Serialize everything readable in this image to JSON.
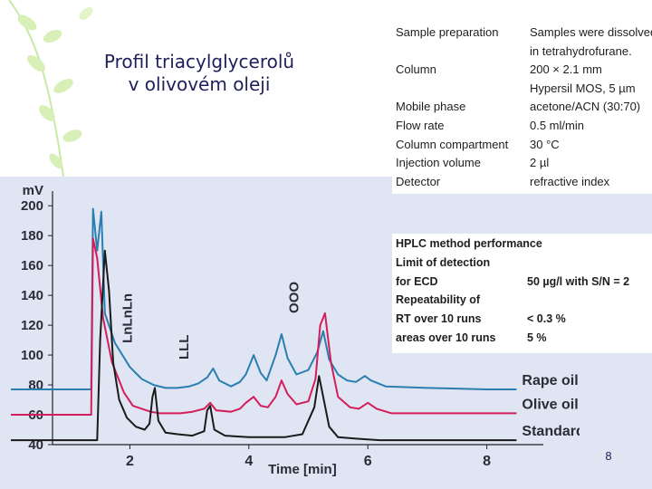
{
  "slide": {
    "title_line1": "Profil triacylglycerolů",
    "title_line2": "v olivovém oleji",
    "page_number": "8",
    "decoration": "pale green leaf branch"
  },
  "prep_table": [
    {
      "label": "Sample preparation",
      "value": "Samples were dissolved"
    },
    {
      "label": "",
      "value": "in tetrahydrofurane."
    },
    {
      "label": "Column",
      "value": "200 × 2.1 mm"
    },
    {
      "label": "",
      "value": "Hypersil MOS, 5 µm"
    },
    {
      "label": "Mobile phase",
      "value": "acetone/ACN (30:70)"
    },
    {
      "label": "Flow rate",
      "value": "0.5 ml/min"
    },
    {
      "label": "Column compartment",
      "value": "30 °C"
    },
    {
      "label": "Injection volume",
      "value": "2 µl"
    },
    {
      "label": "Detector",
      "value": "refractive index"
    }
  ],
  "performance_table": [
    {
      "label": "HPLC method performance",
      "value": ""
    },
    {
      "label": "Limit of detection",
      "value": ""
    },
    {
      "label": "for ECD",
      "value": "50 µg/l with S/N = 2"
    },
    {
      "label": "Repeatability of",
      "value": ""
    },
    {
      "label": "RT over 10 runs",
      "value": "< 0.3 %"
    },
    {
      "label": "areas over 10 runs",
      "value": "5 %"
    }
  ],
  "chart_data": {
    "type": "line",
    "ylabel": "mV",
    "xlabel": "Time [min]",
    "xlim": [
      0,
      10
    ],
    "ylim": [
      40,
      205
    ],
    "x_ticks": [
      2,
      4,
      6,
      8
    ],
    "x_tick_labels": [
      "2",
      "4",
      "6",
      "8"
    ],
    "y_ticks": [
      40,
      60,
      80,
      100,
      120,
      140,
      160,
      180,
      200
    ],
    "y_tick_labels": [
      "40",
      "60",
      "80",
      "100",
      "120",
      "140",
      "160",
      "180",
      "200"
    ],
    "grid": false,
    "legend": "right, labels beside trace ends",
    "background": "#dfe5f2",
    "peak_labels": [
      {
        "text": "LnLnLn",
        "x": 2.4,
        "y": 108
      },
      {
        "text": "LLL",
        "x": 3.35,
        "y": 97
      },
      {
        "text": "OOO",
        "x": 5.2,
        "y": 128
      }
    ],
    "series": [
      {
        "name": "Rape oil",
        "color": "#2a7fb0",
        "points": [
          [
            0,
            77
          ],
          [
            1.35,
            77
          ],
          [
            1.38,
            198
          ],
          [
            1.45,
            170
          ],
          [
            1.52,
            196
          ],
          [
            1.58,
            128
          ],
          [
            1.75,
            108
          ],
          [
            2.0,
            92
          ],
          [
            2.2,
            84
          ],
          [
            2.4,
            80
          ],
          [
            2.6,
            78
          ],
          [
            2.8,
            78
          ],
          [
            3.0,
            79
          ],
          [
            3.15,
            81
          ],
          [
            3.3,
            85
          ],
          [
            3.4,
            91
          ],
          [
            3.5,
            83
          ],
          [
            3.7,
            79
          ],
          [
            3.85,
            82
          ],
          [
            3.95,
            87
          ],
          [
            4.08,
            100
          ],
          [
            4.2,
            88
          ],
          [
            4.3,
            83
          ],
          [
            4.45,
            100
          ],
          [
            4.55,
            114
          ],
          [
            4.65,
            98
          ],
          [
            4.8,
            87
          ],
          [
            5.0,
            90
          ],
          [
            5.15,
            102
          ],
          [
            5.25,
            116
          ],
          [
            5.35,
            97
          ],
          [
            5.5,
            87
          ],
          [
            5.65,
            83
          ],
          [
            5.8,
            82
          ],
          [
            5.95,
            86
          ],
          [
            6.05,
            83
          ],
          [
            6.3,
            79
          ],
          [
            7,
            78
          ],
          [
            8,
            77
          ],
          [
            8.5,
            77
          ]
        ]
      },
      {
        "name": "Olive oil",
        "color": "#d21e5a",
        "points": [
          [
            0,
            60
          ],
          [
            1.35,
            60
          ],
          [
            1.38,
            178
          ],
          [
            1.45,
            165
          ],
          [
            1.55,
            125
          ],
          [
            1.7,
            95
          ],
          [
            1.9,
            75
          ],
          [
            2.05,
            66
          ],
          [
            2.2,
            64
          ],
          [
            2.35,
            62
          ],
          [
            2.5,
            61
          ],
          [
            2.7,
            61
          ],
          [
            2.85,
            61
          ],
          [
            3.05,
            62
          ],
          [
            3.25,
            64
          ],
          [
            3.35,
            68
          ],
          [
            3.45,
            63
          ],
          [
            3.7,
            62
          ],
          [
            3.85,
            64
          ],
          [
            3.95,
            68
          ],
          [
            4.08,
            72
          ],
          [
            4.2,
            66
          ],
          [
            4.32,
            65
          ],
          [
            4.45,
            72
          ],
          [
            4.55,
            83
          ],
          [
            4.65,
            74
          ],
          [
            4.8,
            67
          ],
          [
            5.0,
            69
          ],
          [
            5.12,
            84
          ],
          [
            5.2,
            120
          ],
          [
            5.28,
            128
          ],
          [
            5.38,
            95
          ],
          [
            5.5,
            72
          ],
          [
            5.7,
            65
          ],
          [
            5.85,
            64
          ],
          [
            6.0,
            68
          ],
          [
            6.15,
            64
          ],
          [
            6.4,
            61
          ],
          [
            7,
            61
          ],
          [
            8,
            61
          ],
          [
            8.5,
            61
          ]
        ]
      },
      {
        "name": "Standard",
        "color": "#1a1a1a",
        "points": [
          [
            0,
            43
          ],
          [
            1.45,
            43
          ],
          [
            1.5,
            110
          ],
          [
            1.58,
            170
          ],
          [
            1.65,
            143
          ],
          [
            1.72,
            95
          ],
          [
            1.82,
            70
          ],
          [
            1.95,
            58
          ],
          [
            2.1,
            52
          ],
          [
            2.25,
            50
          ],
          [
            2.33,
            54
          ],
          [
            2.38,
            72
          ],
          [
            2.42,
            78
          ],
          [
            2.48,
            56
          ],
          [
            2.6,
            48
          ],
          [
            2.8,
            47
          ],
          [
            3.05,
            46
          ],
          [
            3.25,
            49
          ],
          [
            3.3,
            63
          ],
          [
            3.35,
            66
          ],
          [
            3.42,
            50
          ],
          [
            3.6,
            46
          ],
          [
            4.0,
            45
          ],
          [
            4.3,
            45
          ],
          [
            4.6,
            45
          ],
          [
            4.9,
            47
          ],
          [
            5.1,
            65
          ],
          [
            5.18,
            86
          ],
          [
            5.25,
            72
          ],
          [
            5.35,
            52
          ],
          [
            5.5,
            45
          ],
          [
            5.8,
            44
          ],
          [
            6.2,
            43
          ],
          [
            7,
            43
          ],
          [
            8,
            43
          ],
          [
            8.5,
            43
          ]
        ]
      }
    ]
  }
}
